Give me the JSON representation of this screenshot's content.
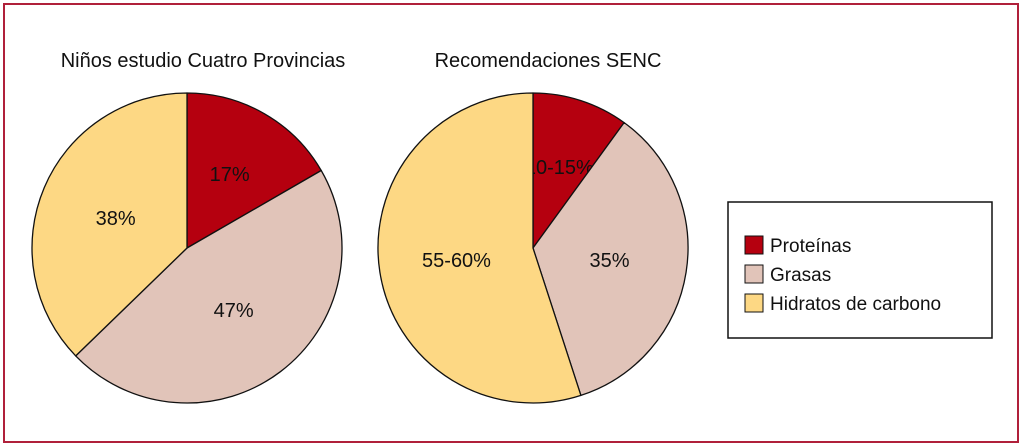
{
  "chart_data": [
    {
      "type": "pie",
      "title": "Niños estudio Cuatro Provincias",
      "categories": [
        "Proteínas",
        "Grasas",
        "Hidratos de carbono"
      ],
      "values": [
        17,
        47,
        38
      ],
      "labels": [
        "17%",
        "47%",
        "38%"
      ]
    },
    {
      "type": "pie",
      "title": "Recomendaciones SENC",
      "categories": [
        "Proteínas",
        "Grasas",
        "Hidratos de carbono"
      ],
      "values": [
        10,
        35,
        55
      ],
      "labels": [
        "10-15%",
        "35%",
        "55-60%"
      ]
    }
  ],
  "legend": {
    "position": "right",
    "items": [
      {
        "label": "Proteínas",
        "color": "#b5000f"
      },
      {
        "label": "Grasas",
        "color": "#e1c4b9"
      },
      {
        "label": "Hidratos de carbono",
        "color": "#fdd884"
      }
    ]
  }
}
